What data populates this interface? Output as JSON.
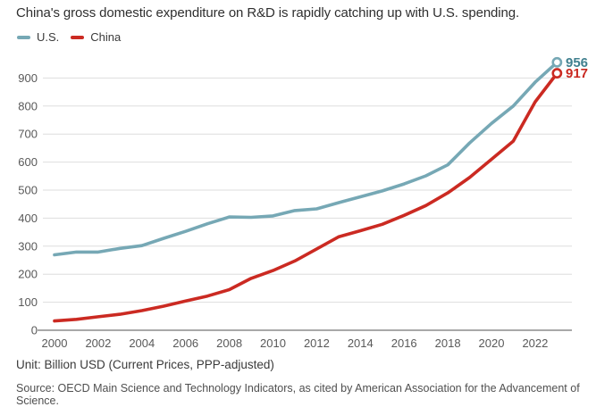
{
  "title": "China's gross domestic expenditure on R&D is rapidly catching up with U.S. spending.",
  "footer": {
    "unit": "Unit: Billion USD (Current Prices, PPP-adjusted)",
    "source": "Source: OECD Main Science and Technology Indicators, as cited by American Association for the Advancement of Science."
  },
  "colors": {
    "us_line": "#76a8b5",
    "us_label": "#41808f",
    "china_line": "#cb2a22",
    "china_label": "#c9271f",
    "gridline": "#dedede",
    "axis_line": "#a8a8a8",
    "tick_text": "#595959"
  },
  "chart_data": {
    "type": "line",
    "title": "China's gross domestic expenditure on R&D is rapidly catching up with U.S. spending.",
    "xlabel": "",
    "ylabel": "Billion USD (Current Prices, PPP-adjusted)",
    "x": [
      2000,
      2001,
      2002,
      2003,
      2004,
      2005,
      2006,
      2007,
      2008,
      2009,
      2010,
      2011,
      2012,
      2013,
      2014,
      2015,
      2016,
      2017,
      2018,
      2019,
      2020,
      2021,
      2022,
      2023
    ],
    "x_tick_labels": [
      "2000",
      "2002",
      "2004",
      "2006",
      "2008",
      "2010",
      "2012",
      "2014",
      "2016",
      "2018",
      "2020",
      "2022"
    ],
    "y_ticks": [
      0,
      100,
      200,
      300,
      400,
      500,
      600,
      700,
      800,
      900
    ],
    "ylim": [
      0,
      980
    ],
    "grid": true,
    "legend_position": "top-left",
    "series": [
      {
        "key": "us",
        "name": "U.S.",
        "color": "#76a8b5",
        "label_color": "#41808f",
        "end_label": "956",
        "values": [
          269,
          279,
          279,
          292,
          302,
          328,
          353,
          380,
          404,
          403,
          408,
          427,
          433,
          455,
          476,
          497,
          522,
          551,
          590,
          668,
          738,
          800,
          885,
          956
        ]
      },
      {
        "key": "china",
        "name": "China",
        "color": "#cb2a22",
        "label_color": "#c9271f",
        "end_label": "917",
        "values": [
          33,
          39,
          48,
          57,
          70,
          86,
          104,
          122,
          145,
          185,
          213,
          247,
          290,
          333,
          355,
          378,
          410,
          445,
          490,
          545,
          610,
          675,
          815,
          917
        ]
      }
    ]
  }
}
